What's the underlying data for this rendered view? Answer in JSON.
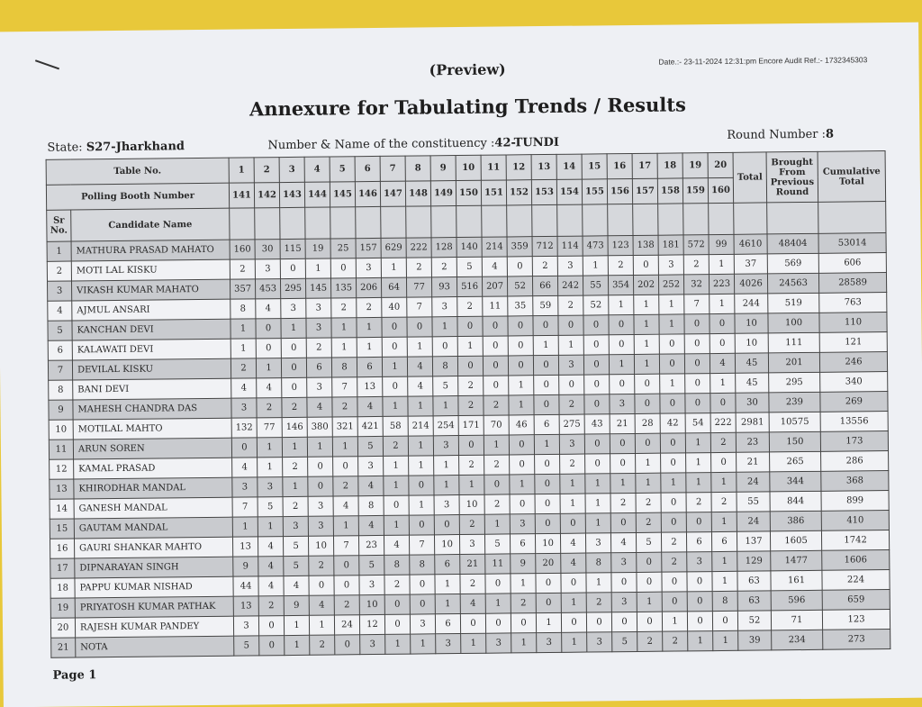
{
  "header": {
    "preview": "(Preview)",
    "date_ref": "Date.:- 23-11-2024 12:31:pm Encore Audit Ref.:- 1732345303",
    "title": "Annexure for Tabulating Trends / Results",
    "state_label": "State:",
    "state_value": "S27-Jharkhand",
    "constituency_label": "Number & Name of the constituency :",
    "constituency_value": "42-TUNDI",
    "round_label": "Round Number :",
    "round_value": "8"
  },
  "table": {
    "table_no_label": "Table No.",
    "booth_label": "Polling Booth Number",
    "sr_label": "Sr No.",
    "candidate_label": "Candidate Name",
    "total_label": "Total",
    "brought_label": "Brought From Previous Round",
    "cumulative_label": "Cumulative Total",
    "table_numbers": [
      "1",
      "2",
      "3",
      "4",
      "5",
      "6",
      "7",
      "8",
      "9",
      "10",
      "11",
      "12",
      "13",
      "14",
      "15",
      "16",
      "17",
      "18",
      "19",
      "20"
    ],
    "booth_numbers": [
      "141",
      "142",
      "143",
      "144",
      "145",
      "146",
      "147",
      "148",
      "149",
      "150",
      "151",
      "152",
      "153",
      "154",
      "155",
      "156",
      "157",
      "158",
      "159",
      "160"
    ],
    "rows": [
      {
        "sr": "1",
        "name": "MATHURA PRASAD MAHATO",
        "values": [
          "160",
          "30",
          "115",
          "19",
          "25",
          "157",
          "629",
          "222",
          "128",
          "140",
          "214",
          "359",
          "712",
          "114",
          "473",
          "123",
          "138",
          "181",
          "572",
          "99"
        ],
        "total": "4610",
        "brought": "48404",
        "cumulative": "53014"
      },
      {
        "sr": "2",
        "name": "MOTI LAL KISKU",
        "values": [
          "2",
          "3",
          "0",
          "1",
          "0",
          "3",
          "1",
          "2",
          "2",
          "5",
          "4",
          "0",
          "2",
          "3",
          "1",
          "2",
          "0",
          "3",
          "2",
          "1"
        ],
        "total": "37",
        "brought": "569",
        "cumulative": "606"
      },
      {
        "sr": "3",
        "name": "VIKASH KUMAR MAHATO",
        "values": [
          "357",
          "453",
          "295",
          "145",
          "135",
          "206",
          "64",
          "77",
          "93",
          "516",
          "207",
          "52",
          "66",
          "242",
          "55",
          "354",
          "202",
          "252",
          "32",
          "223"
        ],
        "total": "4026",
        "brought": "24563",
        "cumulative": "28589"
      },
      {
        "sr": "4",
        "name": "AJMUL ANSARI",
        "values": [
          "8",
          "4",
          "3",
          "3",
          "2",
          "2",
          "40",
          "7",
          "3",
          "2",
          "11",
          "35",
          "59",
          "2",
          "52",
          "1",
          "1",
          "1",
          "7",
          "1"
        ],
        "total": "244",
        "brought": "519",
        "cumulative": "763"
      },
      {
        "sr": "5",
        "name": "KANCHAN DEVI",
        "values": [
          "1",
          "0",
          "1",
          "3",
          "1",
          "1",
          "0",
          "0",
          "1",
          "0",
          "0",
          "0",
          "0",
          "0",
          "0",
          "0",
          "1",
          "1",
          "0",
          "0"
        ],
        "total": "10",
        "brought": "100",
        "cumulative": "110"
      },
      {
        "sr": "6",
        "name": "KALAWATI DEVI",
        "values": [
          "1",
          "0",
          "0",
          "2",
          "1",
          "1",
          "0",
          "1",
          "0",
          "1",
          "0",
          "0",
          "1",
          "1",
          "0",
          "0",
          "1",
          "0",
          "0",
          "0"
        ],
        "total": "10",
        "brought": "111",
        "cumulative": "121"
      },
      {
        "sr": "7",
        "name": "DEVILAL KISKU",
        "values": [
          "2",
          "1",
          "0",
          "6",
          "8",
          "6",
          "1",
          "4",
          "8",
          "0",
          "0",
          "0",
          "0",
          "3",
          "0",
          "1",
          "1",
          "0",
          "0",
          "4"
        ],
        "total": "45",
        "brought": "201",
        "cumulative": "246"
      },
      {
        "sr": "8",
        "name": "BANI DEVI",
        "values": [
          "4",
          "4",
          "0",
          "3",
          "7",
          "13",
          "0",
          "4",
          "5",
          "2",
          "0",
          "1",
          "0",
          "0",
          "0",
          "0",
          "0",
          "1",
          "0",
          "1"
        ],
        "total": "45",
        "brought": "295",
        "cumulative": "340"
      },
      {
        "sr": "9",
        "name": "MAHESH CHANDRA DAS",
        "values": [
          "3",
          "2",
          "2",
          "4",
          "2",
          "4",
          "1",
          "1",
          "1",
          "2",
          "2",
          "1",
          "0",
          "2",
          "0",
          "3",
          "0",
          "0",
          "0",
          "0"
        ],
        "total": "30",
        "brought": "239",
        "cumulative": "269"
      },
      {
        "sr": "10",
        "name": "MOTILAL MAHTO",
        "values": [
          "132",
          "77",
          "146",
          "380",
          "321",
          "421",
          "58",
          "214",
          "254",
          "171",
          "70",
          "46",
          "6",
          "275",
          "43",
          "21",
          "28",
          "42",
          "54",
          "222"
        ],
        "total": "2981",
        "brought": "10575",
        "cumulative": "13556"
      },
      {
        "sr": "11",
        "name": "ARUN SOREN",
        "values": [
          "0",
          "1",
          "1",
          "1",
          "1",
          "5",
          "2",
          "1",
          "3",
          "0",
          "1",
          "0",
          "1",
          "3",
          "0",
          "0",
          "0",
          "0",
          "1",
          "2"
        ],
        "total": "23",
        "brought": "150",
        "cumulative": "173"
      },
      {
        "sr": "12",
        "name": "KAMAL PRASAD",
        "values": [
          "4",
          "1",
          "2",
          "0",
          "0",
          "3",
          "1",
          "1",
          "1",
          "2",
          "2",
          "0",
          "0",
          "2",
          "0",
          "0",
          "1",
          "0",
          "1",
          "0"
        ],
        "total": "21",
        "brought": "265",
        "cumulative": "286"
      },
      {
        "sr": "13",
        "name": "KHIRODHAR MANDAL",
        "values": [
          "3",
          "3",
          "1",
          "0",
          "2",
          "4",
          "1",
          "0",
          "1",
          "1",
          "0",
          "1",
          "0",
          "1",
          "1",
          "1",
          "1",
          "1",
          "1",
          "1"
        ],
        "total": "24",
        "brought": "344",
        "cumulative": "368"
      },
      {
        "sr": "14",
        "name": "GANESH MANDAL",
        "values": [
          "7",
          "5",
          "2",
          "3",
          "4",
          "8",
          "0",
          "1",
          "3",
          "10",
          "2",
          "0",
          "0",
          "1",
          "1",
          "2",
          "2",
          "0",
          "2",
          "2"
        ],
        "total": "55",
        "brought": "844",
        "cumulative": "899"
      },
      {
        "sr": "15",
        "name": "GAUTAM MANDAL",
        "values": [
          "1",
          "1",
          "3",
          "3",
          "1",
          "4",
          "1",
          "0",
          "0",
          "2",
          "1",
          "3",
          "0",
          "0",
          "1",
          "0",
          "2",
          "0",
          "0",
          "1"
        ],
        "total": "24",
        "brought": "386",
        "cumulative": "410"
      },
      {
        "sr": "16",
        "name": "GAURI SHANKAR MAHTO",
        "values": [
          "13",
          "4",
          "5",
          "10",
          "7",
          "23",
          "4",
          "7",
          "10",
          "3",
          "5",
          "6",
          "10",
          "4",
          "3",
          "4",
          "5",
          "2",
          "6",
          "6"
        ],
        "total": "137",
        "brought": "1605",
        "cumulative": "1742"
      },
      {
        "sr": "17",
        "name": "DIPNARAYAN SINGH",
        "values": [
          "9",
          "4",
          "5",
          "2",
          "0",
          "5",
          "8",
          "8",
          "6",
          "21",
          "11",
          "9",
          "20",
          "4",
          "8",
          "3",
          "0",
          "2",
          "3",
          "1"
        ],
        "total": "129",
        "brought": "1477",
        "cumulative": "1606"
      },
      {
        "sr": "18",
        "name": "PAPPU KUMAR NISHAD",
        "values": [
          "44",
          "4",
          "4",
          "0",
          "0",
          "3",
          "2",
          "0",
          "1",
          "2",
          "0",
          "1",
          "0",
          "0",
          "1",
          "0",
          "0",
          "0",
          "0",
          "1"
        ],
        "total": "63",
        "brought": "161",
        "cumulative": "224"
      },
      {
        "sr": "19",
        "name": "PRIYATOSH KUMAR PATHAK",
        "values": [
          "13",
          "2",
          "9",
          "4",
          "2",
          "10",
          "0",
          "0",
          "1",
          "4",
          "1",
          "2",
          "0",
          "1",
          "2",
          "3",
          "1",
          "0",
          "0",
          "8"
        ],
        "total": "63",
        "brought": "596",
        "cumulative": "659"
      },
      {
        "sr": "20",
        "name": "RAJESH KUMAR PANDEY",
        "values": [
          "3",
          "0",
          "1",
          "1",
          "24",
          "12",
          "0",
          "3",
          "6",
          "0",
          "0",
          "0",
          "1",
          "0",
          "0",
          "0",
          "0",
          "1",
          "0",
          "0"
        ],
        "total": "52",
        "brought": "71",
        "cumulative": "123"
      },
      {
        "sr": "21",
        "name": "NOTA",
        "values": [
          "5",
          "0",
          "1",
          "2",
          "0",
          "3",
          "1",
          "1",
          "3",
          "1",
          "3",
          "1",
          "3",
          "1",
          "3",
          "5",
          "2",
          "2",
          "1",
          "1"
        ],
        "total": "39",
        "brought": "234",
        "cumulative": "273"
      }
    ]
  },
  "footer": {
    "page": "Page 1"
  },
  "colors": {
    "background": "#e8c83a",
    "paper": "#eef0f4",
    "shade": "#c9cbcf"
  }
}
